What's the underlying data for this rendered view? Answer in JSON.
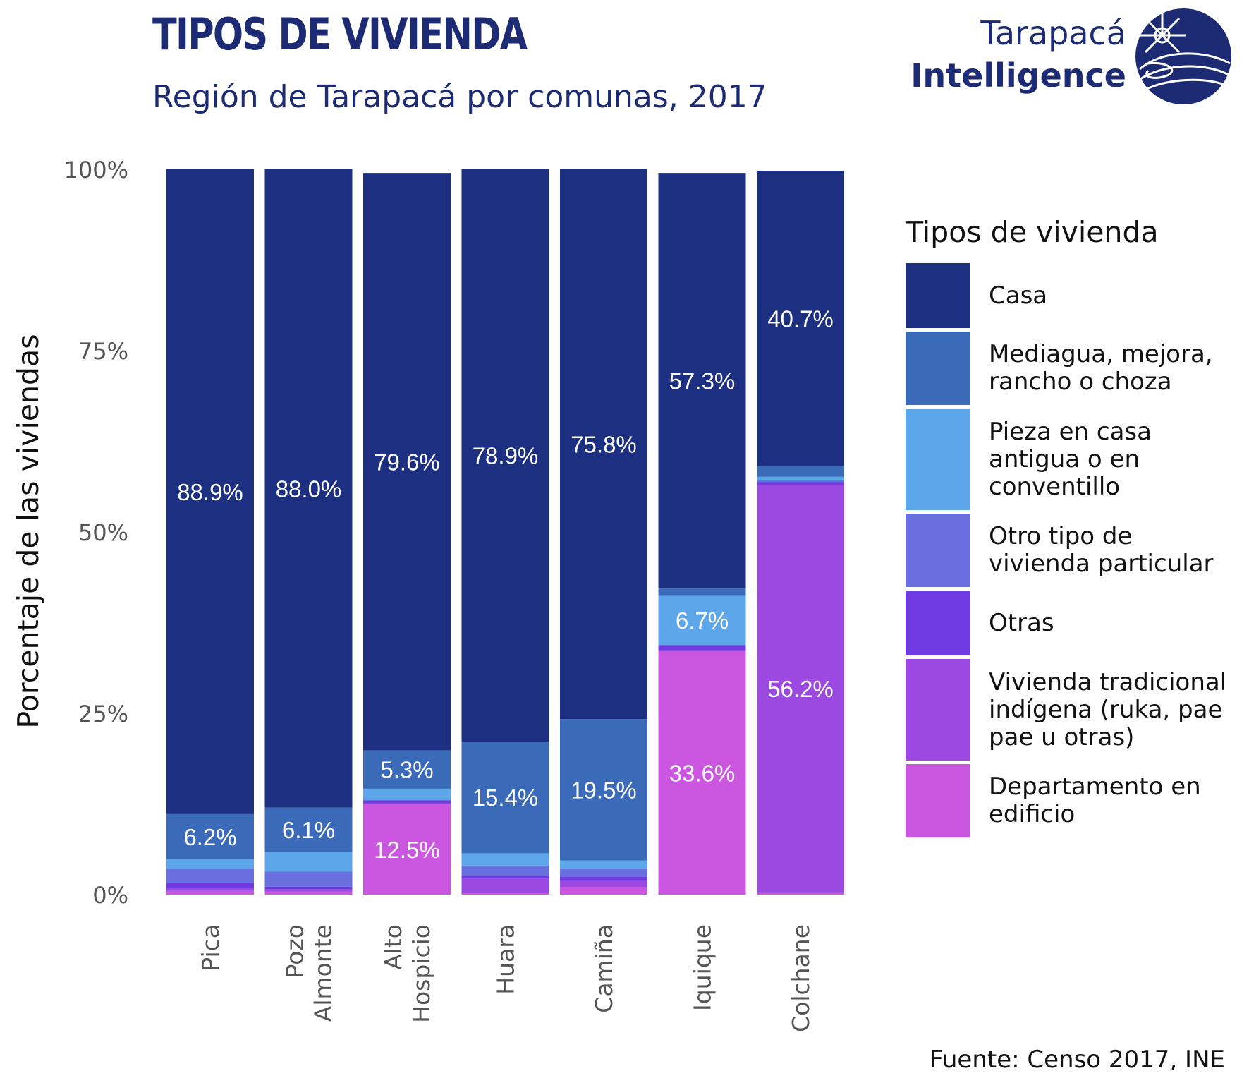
{
  "header": {
    "title": "TIPOS DE VIVIENDA",
    "subtitle": "Región de Tarapacá por comunas, 2017"
  },
  "logo": {
    "line1": "Tarapacá",
    "line2": "Intelligence",
    "icon": "tarapaca-globe-logo-icon"
  },
  "source": "Fuente: Censo 2017, INE",
  "colors": {
    "casa": "#1d2f80",
    "mediagua": "#3b6bb8",
    "pieza": "#5ea6ea",
    "otro": "#6a6fe0",
    "otras": "#6f3be0",
    "tradicional": "#9b49e0",
    "departamento": "#cb56e0"
  },
  "chart_data": {
    "type": "bar",
    "stacked": true,
    "title": "TIPOS DE VIVIENDA",
    "subtitle": "Región de Tarapacá por comunas, 2017",
    "ylabel": "Porcentaje de las viviendas",
    "xlabel": "",
    "ylim": [
      0,
      100
    ],
    "y_ticks": [
      "0%",
      "25%",
      "50%",
      "75%",
      "100%"
    ],
    "categories": [
      "Pica",
      "Pozo Almonte",
      "Alto Hospicio",
      "Huara",
      "Camiña",
      "Iquique",
      "Colchane"
    ],
    "legend_title": "Tipos de vivienda",
    "legend_position": "right",
    "series": [
      {
        "name": "Departamento en edificio",
        "key": "departamento",
        "values": [
          0.5,
          0.4,
          12.5,
          0.2,
          1.0,
          33.6,
          0.3
        ]
      },
      {
        "name": "Vivienda tradicional indígena (ruka, pae pae u otras)",
        "key": "tradicional",
        "values": [
          0.3,
          0.3,
          0.1,
          2.0,
          1.0,
          0.1,
          56.2
        ]
      },
      {
        "name": "Otras",
        "key": "otras",
        "values": [
          0.8,
          0.4,
          0.3,
          0.4,
          0.5,
          0.6,
          0.4
        ]
      },
      {
        "name": "Otro tipo de vivienda particular",
        "key": "otro",
        "values": [
          2.0,
          2.1,
          0.2,
          1.4,
          1.0,
          0.2,
          0.2
        ]
      },
      {
        "name": "Pieza en casa antigua o en conventillo",
        "key": "pieza",
        "values": [
          1.3,
          2.7,
          1.5,
          1.7,
          1.2,
          6.7,
          0.5
        ]
      },
      {
        "name": "Mediagua, mejora, rancho o choza",
        "key": "mediagua",
        "values": [
          6.2,
          6.1,
          5.3,
          15.4,
          19.5,
          1.0,
          1.5
        ]
      },
      {
        "name": "Casa",
        "key": "casa",
        "values": [
          88.9,
          88.0,
          79.6,
          78.9,
          75.8,
          57.3,
          40.7
        ]
      }
    ],
    "data_labels": [
      {
        "category": "Pica",
        "series": "Casa",
        "text": "88.9%"
      },
      {
        "category": "Pica",
        "series": "Mediagua, mejora, rancho o choza",
        "text": "6.2%"
      },
      {
        "category": "Pozo Almonte",
        "series": "Casa",
        "text": "88.0%"
      },
      {
        "category": "Pozo Almonte",
        "series": "Mediagua, mejora, rancho o choza",
        "text": "6.1%"
      },
      {
        "category": "Alto Hospicio",
        "series": "Casa",
        "text": "79.6%"
      },
      {
        "category": "Alto Hospicio",
        "series": "Mediagua, mejora, rancho o choza",
        "text": "5.3%"
      },
      {
        "category": "Alto Hospicio",
        "series": "Departamento en edificio",
        "text": "12.5%"
      },
      {
        "category": "Huara",
        "series": "Casa",
        "text": "78.9%"
      },
      {
        "category": "Huara",
        "series": "Mediagua, mejora, rancho o choza",
        "text": "15.4%"
      },
      {
        "category": "Camiña",
        "series": "Casa",
        "text": "75.8%"
      },
      {
        "category": "Camiña",
        "series": "Mediagua, mejora, rancho o choza",
        "text": "19.5%"
      },
      {
        "category": "Iquique",
        "series": "Casa",
        "text": "57.3%"
      },
      {
        "category": "Iquique",
        "series": "Pieza en casa antigua o en conventillo",
        "text": "6.7%"
      },
      {
        "category": "Iquique",
        "series": "Departamento en edificio",
        "text": "33.6%"
      },
      {
        "category": "Colchane",
        "series": "Casa",
        "text": "40.7%"
      },
      {
        "category": "Colchane",
        "series": "Vivienda tradicional indígena (ruka, pae pae u otras)",
        "text": "56.2%"
      }
    ],
    "legend_order": [
      "casa",
      "mediagua",
      "pieza",
      "otro",
      "otras",
      "tradicional",
      "departamento"
    ],
    "legend_labels": {
      "casa": "Casa",
      "mediagua": "Mediagua, mejora,\nrancho o choza",
      "pieza": "Pieza en casa\nantigua o en\nconventillo",
      "otro": "Otro tipo de\nvivienda particular",
      "otras": "Otras",
      "tradicional": "Vivienda tradicional\nindígena (ruka, pae\npae u otras)",
      "departamento": "Departamento en\nedificio"
    },
    "category_labels": [
      [
        "Pica"
      ],
      [
        "Pozo",
        "Almonte"
      ],
      [
        "Alto",
        "Hospicio"
      ],
      [
        "Huara"
      ],
      [
        "Camiña"
      ],
      [
        "Iquique"
      ],
      [
        "Colchane"
      ]
    ],
    "grid": false
  }
}
